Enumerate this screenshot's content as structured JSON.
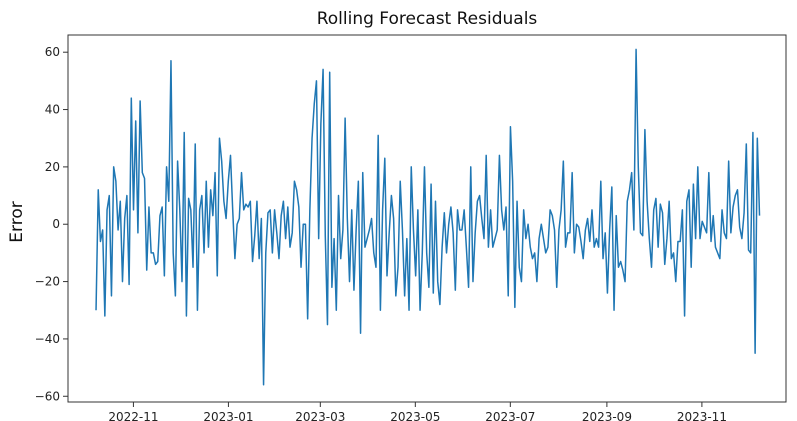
{
  "chart_data": {
    "type": "line",
    "title": "Rolling Forecast Residuals",
    "xlabel": "",
    "ylabel": "Error",
    "x_start": "2022-10-08",
    "x_end": "2023-12-08",
    "xlim": [
      "2022-09-20",
      "2023-12-25"
    ],
    "ylim": [
      -62,
      66
    ],
    "x_ticks": [
      {
        "date": "2022-11-01",
        "label": "2022-11"
      },
      {
        "date": "2023-01-01",
        "label": "2023-01"
      },
      {
        "date": "2023-03-01",
        "label": "2023-03"
      },
      {
        "date": "2023-05-01",
        "label": "2023-05"
      },
      {
        "date": "2023-07-01",
        "label": "2023-07"
      },
      {
        "date": "2023-09-01",
        "label": "2023-09"
      },
      {
        "date": "2023-11-01",
        "label": "2023-11"
      }
    ],
    "y_ticks": [
      {
        "value": 60,
        "label": "60"
      },
      {
        "value": 40,
        "label": "40"
      },
      {
        "value": 20,
        "label": "20"
      },
      {
        "value": 0,
        "label": "0"
      },
      {
        "value": -20,
        "label": "−20"
      },
      {
        "value": -40,
        "label": "−40"
      },
      {
        "value": -60,
        "label": "−60"
      }
    ],
    "grid": false,
    "legend": "none",
    "line_color": "#1f77b4",
    "series": [
      {
        "values": [
          -30,
          12,
          -6,
          -2,
          -32,
          5,
          10,
          -25,
          20,
          15,
          -2,
          8,
          -20,
          2,
          10,
          -21,
          44,
          5,
          36,
          -3,
          43,
          18,
          16,
          -16,
          6,
          -10,
          -10,
          -14,
          -13,
          3,
          6,
          -18,
          20,
          8,
          57,
          -10,
          -25,
          22,
          5,
          -20,
          32,
          -32,
          9,
          5,
          -15,
          28,
          -30,
          5,
          10,
          -10,
          15,
          -8,
          12,
          3,
          18,
          -18,
          30,
          22,
          8,
          2,
          15,
          24,
          5,
          -12,
          0,
          2,
          18,
          5,
          7,
          6,
          8,
          -13,
          -4,
          8,
          -12,
          2,
          -56,
          -10,
          4,
          5,
          -10,
          5,
          -3,
          -12,
          3,
          8,
          -5,
          6,
          -8,
          -3,
          15,
          12,
          6,
          -15,
          0,
          0,
          -33,
          5,
          30,
          42,
          50,
          -5,
          35,
          54,
          -4,
          -35,
          53,
          -22,
          -5,
          -30,
          10,
          -12,
          -2,
          37,
          2,
          -20,
          5,
          -23,
          -2,
          15,
          -38,
          18,
          -8,
          -5,
          -2,
          2,
          -10,
          -15,
          31,
          -30,
          5,
          23,
          -18,
          -3,
          10,
          2,
          -25,
          -15,
          15,
          -2,
          -25,
          -5,
          -30,
          20,
          -2,
          -18,
          5,
          -30,
          -10,
          20,
          -10,
          -22,
          14,
          -24,
          8,
          -20,
          -28,
          -8,
          4,
          -10,
          0,
          6,
          -3,
          -23,
          5,
          -2,
          -2,
          5,
          -8,
          -22,
          20,
          -20,
          -3,
          8,
          10,
          2,
          -5,
          24,
          -8,
          5,
          -8,
          -5,
          -2,
          24,
          5,
          -2,
          6,
          -25,
          34,
          15,
          -29,
          8,
          -15,
          -20,
          5,
          -5,
          0,
          -8,
          -12,
          -10,
          -20,
          -5,
          0,
          -5,
          -10,
          -8,
          5,
          3,
          -2,
          -22,
          -2,
          5,
          22,
          -8,
          -3,
          -3,
          18,
          -10,
          0,
          -1,
          -6,
          -12,
          -2,
          2,
          -6,
          5,
          -8,
          -5,
          -8,
          15,
          -12,
          -3,
          -24,
          -2,
          13,
          -30,
          3,
          -15,
          -13,
          -16,
          -20,
          8,
          12,
          18,
          -2,
          61,
          20,
          -3,
          -4,
          33,
          8,
          -5,
          -15,
          5,
          9,
          -8,
          7,
          4,
          -14,
          -5,
          8,
          -12,
          -10,
          -20,
          -6,
          -6,
          5,
          -32,
          8,
          12,
          -15,
          14,
          -5,
          20,
          -5,
          1,
          -1,
          -3,
          18,
          -6,
          3,
          -8,
          -10,
          -12,
          5,
          -3,
          -5,
          22,
          -3,
          6,
          10,
          12,
          -1,
          -5,
          4,
          28,
          -9,
          -10,
          32,
          -45,
          30,
          3
        ]
      }
    ]
  }
}
